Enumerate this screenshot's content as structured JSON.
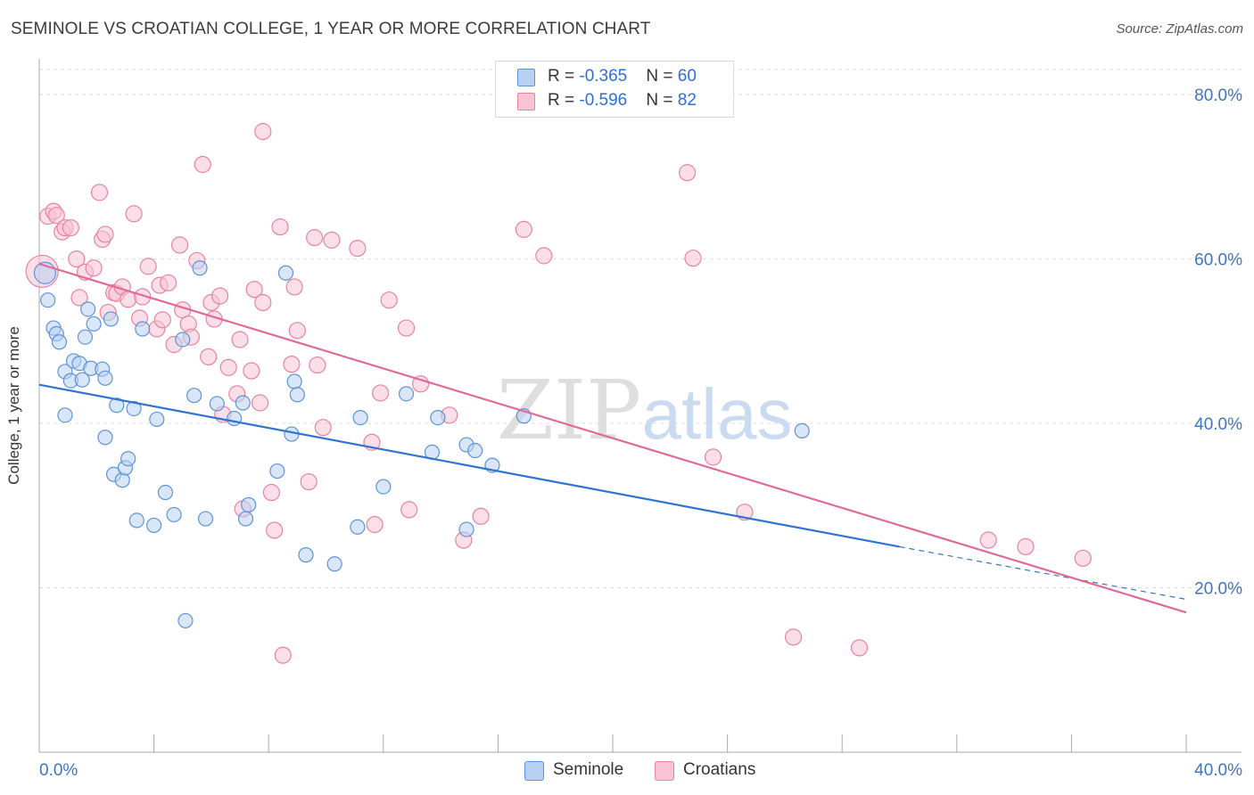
{
  "header": {
    "title": "SEMINOLE VS CROATIAN COLLEGE, 1 YEAR OR MORE CORRELATION CHART",
    "source": "Source: ZipAtlas.com"
  },
  "legend": {
    "series1": {
      "r_label": "R = ",
      "r_value": "-0.365",
      "n_label": "N = ",
      "n_value": "60"
    },
    "series2": {
      "r_label": "R = ",
      "r_value": "-0.596",
      "n_label": "N = ",
      "n_value": "82"
    }
  },
  "bottom_legend": {
    "series1": "Seminole",
    "series2": "Croatians"
  },
  "watermark": {
    "part1": "ZIP",
    "part2": "atlas"
  },
  "colors": {
    "seminole_fill": "#b8d1f3",
    "seminole_stroke": "#5e93d8",
    "seminole_line": "#2f74d0",
    "croatian_fill": "#f8c3d3",
    "croatian_stroke": "#e8849f",
    "croatian_line": "#e0699a",
    "axis_text": "#3f73c4",
    "grid": "#dddddd"
  },
  "chart_data": {
    "type": "scatter",
    "title": "SEMINOLE VS CROATIAN COLLEGE, 1 YEAR OR MORE CORRELATION CHART",
    "xlabel": "",
    "ylabel": "College, 1 year or more",
    "xlim": [
      0,
      40
    ],
    "ylim": [
      0,
      85
    ],
    "x_tick_labels": [
      "0.0%",
      "40.0%"
    ],
    "y_ticks": [
      20,
      40,
      60,
      80
    ],
    "y_tick_labels": [
      "20.0%",
      "40.0%",
      "60.0%",
      "80.0%"
    ],
    "grid": "horizontal dashed",
    "series": [
      {
        "name": "Seminole",
        "r": -0.365,
        "n": 60,
        "trend": {
          "x": [
            0,
            30,
            40
          ],
          "y": [
            44.7,
            25.0,
            18.6
          ],
          "solid_until_x": 30
        },
        "points": [
          [
            0.2,
            58.3
          ],
          [
            0.3,
            55.0
          ],
          [
            0.5,
            51.6
          ],
          [
            0.6,
            50.9
          ],
          [
            0.7,
            49.9
          ],
          [
            0.9,
            46.3
          ],
          [
            0.9,
            41.0
          ],
          [
            1.1,
            45.2
          ],
          [
            1.2,
            47.6
          ],
          [
            1.4,
            47.3
          ],
          [
            1.5,
            45.3
          ],
          [
            1.6,
            50.5
          ],
          [
            1.7,
            53.9
          ],
          [
            1.8,
            46.7
          ],
          [
            1.9,
            52.1
          ],
          [
            2.2,
            46.6
          ],
          [
            2.3,
            38.3
          ],
          [
            2.3,
            45.5
          ],
          [
            2.5,
            52.7
          ],
          [
            2.6,
            33.8
          ],
          [
            2.7,
            42.2
          ],
          [
            2.9,
            33.1
          ],
          [
            3.0,
            34.6
          ],
          [
            3.1,
            35.7
          ],
          [
            3.3,
            41.8
          ],
          [
            3.4,
            28.2
          ],
          [
            3.6,
            51.5
          ],
          [
            4.0,
            27.6
          ],
          [
            4.1,
            40.5
          ],
          [
            4.4,
            31.6
          ],
          [
            4.7,
            28.9
          ],
          [
            5.0,
            50.2
          ],
          [
            5.1,
            16.0
          ],
          [
            5.4,
            43.4
          ],
          [
            5.6,
            58.9
          ],
          [
            5.8,
            28.4
          ],
          [
            6.2,
            42.4
          ],
          [
            6.8,
            40.6
          ],
          [
            7.1,
            42.5
          ],
          [
            7.2,
            28.4
          ],
          [
            7.3,
            30.1
          ],
          [
            8.3,
            34.2
          ],
          [
            8.6,
            58.3
          ],
          [
            8.8,
            38.7
          ],
          [
            8.9,
            45.1
          ],
          [
            9.0,
            43.5
          ],
          [
            9.3,
            24.0
          ],
          [
            10.3,
            22.9
          ],
          [
            11.2,
            40.7
          ],
          [
            11.1,
            27.4
          ],
          [
            12.0,
            32.3
          ],
          [
            12.8,
            43.6
          ],
          [
            13.7,
            36.5
          ],
          [
            13.9,
            40.7
          ],
          [
            14.9,
            27.1
          ],
          [
            14.9,
            37.4
          ],
          [
            15.2,
            36.7
          ],
          [
            15.8,
            34.9
          ],
          [
            16.9,
            40.9
          ],
          [
            26.6,
            39.1
          ]
        ]
      },
      {
        "name": "Croatians",
        "r": -0.596,
        "n": 82,
        "trend": {
          "x": [
            0,
            40
          ],
          "y": [
            59.4,
            17.0
          ]
        },
        "points": [
          [
            0.1,
            58.5
          ],
          [
            0.3,
            65.2
          ],
          [
            0.5,
            65.8
          ],
          [
            0.6,
            65.3
          ],
          [
            0.8,
            63.3
          ],
          [
            0.9,
            63.8
          ],
          [
            1.1,
            63.8
          ],
          [
            1.3,
            60.0
          ],
          [
            1.4,
            55.3
          ],
          [
            1.6,
            58.4
          ],
          [
            1.9,
            58.9
          ],
          [
            2.1,
            68.1
          ],
          [
            2.2,
            62.4
          ],
          [
            2.3,
            63.0
          ],
          [
            2.4,
            53.5
          ],
          [
            2.6,
            55.9
          ],
          [
            2.7,
            55.8
          ],
          [
            2.9,
            56.6
          ],
          [
            3.1,
            55.1
          ],
          [
            3.3,
            65.5
          ],
          [
            3.5,
            52.8
          ],
          [
            3.6,
            55.4
          ],
          [
            3.8,
            59.1
          ],
          [
            4.1,
            51.5
          ],
          [
            4.2,
            56.8
          ],
          [
            4.3,
            52.6
          ],
          [
            4.5,
            57.1
          ],
          [
            4.7,
            49.6
          ],
          [
            4.9,
            61.7
          ],
          [
            5.0,
            53.8
          ],
          [
            5.2,
            52.1
          ],
          [
            5.3,
            50.5
          ],
          [
            5.5,
            59.8
          ],
          [
            5.7,
            71.5
          ],
          [
            5.9,
            48.1
          ],
          [
            6.0,
            54.7
          ],
          [
            6.1,
            52.7
          ],
          [
            6.3,
            55.5
          ],
          [
            6.4,
            41.1
          ],
          [
            6.6,
            46.8
          ],
          [
            6.9,
            43.6
          ],
          [
            7.0,
            50.2
          ],
          [
            7.1,
            29.6
          ],
          [
            7.4,
            46.4
          ],
          [
            7.5,
            56.3
          ],
          [
            7.7,
            42.5
          ],
          [
            7.8,
            54.7
          ],
          [
            7.8,
            75.5
          ],
          [
            8.1,
            31.6
          ],
          [
            8.2,
            27.0
          ],
          [
            8.4,
            63.9
          ],
          [
            8.5,
            11.8
          ],
          [
            8.8,
            47.2
          ],
          [
            8.9,
            56.6
          ],
          [
            9.0,
            51.3
          ],
          [
            9.4,
            32.9
          ],
          [
            9.6,
            62.6
          ],
          [
            9.7,
            47.1
          ],
          [
            9.9,
            39.5
          ],
          [
            10.2,
            62.3
          ],
          [
            11.1,
            61.3
          ],
          [
            11.6,
            37.7
          ],
          [
            11.7,
            27.7
          ],
          [
            11.9,
            43.7
          ],
          [
            12.2,
            55.0
          ],
          [
            12.8,
            51.6
          ],
          [
            12.9,
            29.5
          ],
          [
            13.3,
            44.8
          ],
          [
            14.3,
            41.0
          ],
          [
            14.8,
            25.8
          ],
          [
            15.4,
            28.7
          ],
          [
            16.9,
            63.6
          ],
          [
            17.6,
            60.4
          ],
          [
            22.6,
            70.5
          ],
          [
            22.8,
            60.1
          ],
          [
            23.5,
            35.9
          ],
          [
            24.6,
            29.2
          ],
          [
            26.3,
            14.0
          ],
          [
            28.6,
            12.7
          ],
          [
            33.1,
            25.8
          ],
          [
            34.4,
            25.0
          ],
          [
            36.4,
            23.6
          ]
        ]
      }
    ]
  }
}
